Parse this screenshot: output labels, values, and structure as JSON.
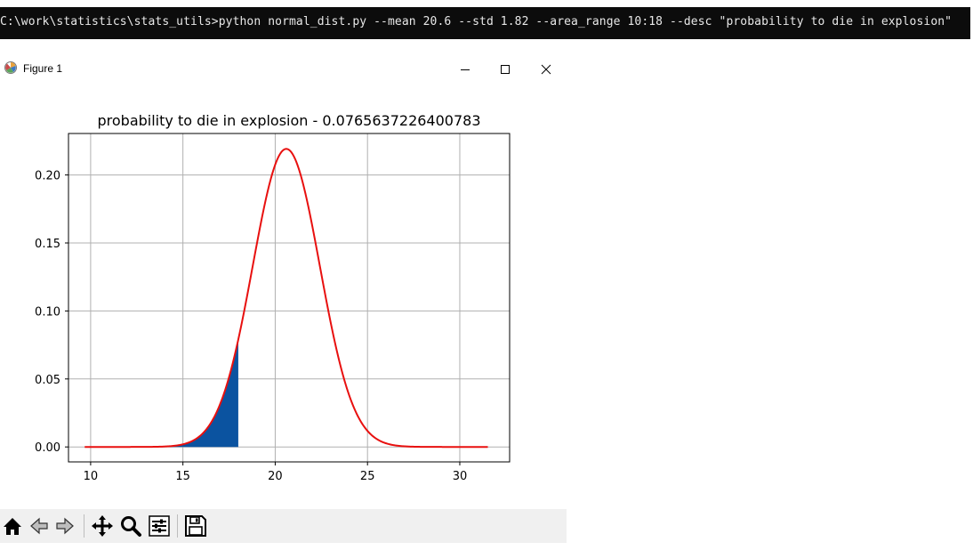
{
  "terminal": {
    "command": "C:\\work\\statistics\\stats_utils>python normal_dist.py --mean 20.6 --std 1.82 --area_range 10:18 --desc \"probability to die in explosion\""
  },
  "window": {
    "title": "Figure 1",
    "icons": {
      "app": "matplotlib-icon",
      "minimize": "minimize-icon",
      "maximize": "maximize-icon",
      "close": "close-icon"
    }
  },
  "toolbar": {
    "buttons": [
      "home-icon",
      "back-icon",
      "forward-icon",
      "pan-icon",
      "zoom-icon",
      "configure-subplots-icon",
      "save-icon"
    ]
  },
  "colors": {
    "curve": "#e8100f",
    "fill": "#0b53a0",
    "grid": "#b0b0b0",
    "terminal_bg": "#0c0c0c"
  },
  "chart_data": {
    "type": "area",
    "title": "probability to die in explosion - 0.0765637226400783",
    "xlabel": "",
    "ylabel": "",
    "xlim": [
      8.8,
      32.7
    ],
    "ylim": [
      -0.011,
      0.2305
    ],
    "xticks": [
      "10",
      "15",
      "20",
      "25",
      "30"
    ],
    "yticks": [
      "0.00",
      "0.05",
      "0.10",
      "0.15",
      "0.20"
    ],
    "grid": true,
    "series": [
      {
        "kind": "normal-pdf-line",
        "mean": 20.6,
        "std": 1.82,
        "x_range": [
          9.68,
          31.52
        ],
        "color": "#e8100f"
      }
    ],
    "shaded_area": {
      "from": 10,
      "to": 18,
      "color": "#0b53a0",
      "probability": 0.0765637226400783
    }
  }
}
